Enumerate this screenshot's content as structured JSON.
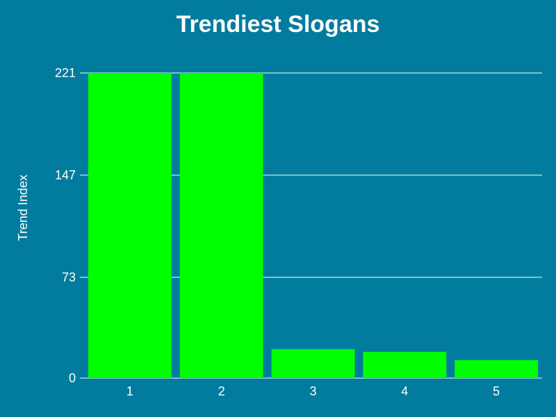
{
  "colors": {
    "background": "#027c9e",
    "bar": "#00ff00",
    "grid": "#ffffff",
    "text": "#ffffff"
  },
  "chart_data": {
    "type": "bar",
    "title": "Trendiest Slogans",
    "xlabel": "",
    "ylabel": "Trend Index",
    "categories": [
      "1",
      "2",
      "3",
      "4",
      "5"
    ],
    "values": [
      221,
      221,
      21,
      19,
      13
    ],
    "ylim": [
      0,
      221
    ],
    "yticks": [
      0,
      73,
      147,
      221
    ],
    "grid": true,
    "legend": "none"
  }
}
